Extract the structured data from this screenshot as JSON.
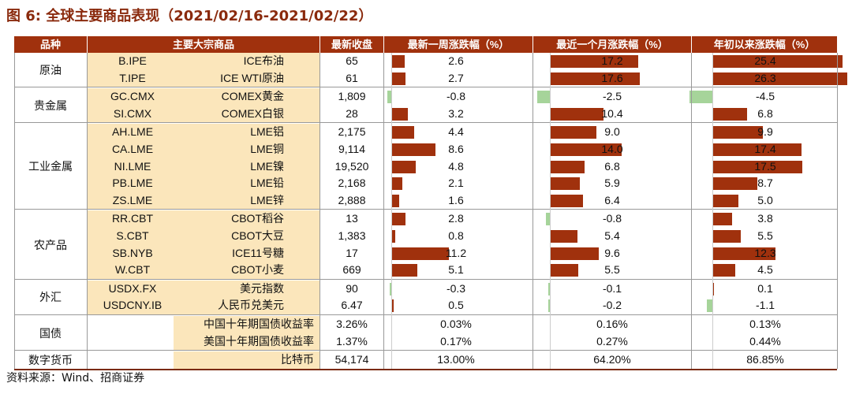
{
  "title": "图 6:  全球主要商品表现（2021/02/16-2021/02/22）",
  "headers": {
    "category": "品种",
    "commodity": "主要大宗商品",
    "close": "最新收盘",
    "week": "最新一周涨跌幅（%）",
    "month": "最近一个月涨跌幅（%）",
    "ytd": "年初以来涨跌幅（%）"
  },
  "colors": {
    "header_bg": "#a0310d",
    "up_bar": "#a0310d",
    "down_bar": "#a6d49a",
    "name_bg": "#fbe6bb"
  },
  "groups": [
    {
      "name": "原油",
      "rows": [
        {
          "code": "B.IPE",
          "name": "ICE布油",
          "close": "65",
          "week": 2.6,
          "week_text": "2.6",
          "month": 17.2,
          "month_text": "17.2",
          "ytd": 25.4,
          "ytd_text": "25.4"
        },
        {
          "code": "T.IPE",
          "name": "ICE WTI原油",
          "close": "61",
          "week": 2.7,
          "week_text": "2.7",
          "month": 17.6,
          "month_text": "17.6",
          "ytd": 26.3,
          "ytd_text": "26.3"
        }
      ]
    },
    {
      "name": "贵金属",
      "rows": [
        {
          "code": "GC.CMX",
          "name": "COMEX黄金",
          "close": "1,809",
          "week": -0.8,
          "week_text": "-0.8",
          "month": -2.5,
          "month_text": "-2.5",
          "ytd": -4.5,
          "ytd_text": "-4.5"
        },
        {
          "code": "SI.CMX",
          "name": "COMEX白银",
          "close": "28",
          "week": 3.2,
          "week_text": "3.2",
          "month": 10.4,
          "month_text": "10.4",
          "ytd": 6.8,
          "ytd_text": "6.8"
        }
      ]
    },
    {
      "name": "工业金属",
      "rows": [
        {
          "code": "AH.LME",
          "name": "LME铝",
          "close": "2,175",
          "week": 4.4,
          "week_text": "4.4",
          "month": 9.0,
          "month_text": "9.0",
          "ytd": 9.9,
          "ytd_text": "9.9"
        },
        {
          "code": "CA.LME",
          "name": "LME铜",
          "close": "9,114",
          "week": 8.6,
          "week_text": "8.6",
          "month": 14.0,
          "month_text": "14.0",
          "ytd": 17.4,
          "ytd_text": "17.4"
        },
        {
          "code": "NI.LME",
          "name": "LME镍",
          "close": "19,520",
          "week": 4.8,
          "week_text": "4.8",
          "month": 6.8,
          "month_text": "6.8",
          "ytd": 17.5,
          "ytd_text": "17.5"
        },
        {
          "code": "PB.LME",
          "name": "LME铅",
          "close": "2,168",
          "week": 2.1,
          "week_text": "2.1",
          "month": 5.9,
          "month_text": "5.9",
          "ytd": 8.7,
          "ytd_text": "8.7"
        },
        {
          "code": "ZS.LME",
          "name": "LME锌",
          "close": "2,888",
          "week": 1.6,
          "week_text": "1.6",
          "month": 6.4,
          "month_text": "6.4",
          "ytd": 5.0,
          "ytd_text": "5.0"
        }
      ]
    },
    {
      "name": "农产品",
      "rows": [
        {
          "code": "RR.CBT",
          "name": "CBOT稻谷",
          "close": "13",
          "week": 2.8,
          "week_text": "2.8",
          "month": -0.8,
          "month_text": "-0.8",
          "ytd": 3.8,
          "ytd_text": "3.8"
        },
        {
          "code": "S.CBT",
          "name": "CBOT大豆",
          "close": "1,383",
          "week": 0.8,
          "week_text": "0.8",
          "month": 5.4,
          "month_text": "5.4",
          "ytd": 5.5,
          "ytd_text": "5.5"
        },
        {
          "code": "SB.NYB",
          "name": "ICE11号糖",
          "close": "17",
          "week": 11.2,
          "week_text": "11.2",
          "month": 9.6,
          "month_text": "9.6",
          "ytd": 12.3,
          "ytd_text": "12.3"
        },
        {
          "code": "W.CBT",
          "name": "CBOT小麦",
          "close": "669",
          "week": 5.1,
          "week_text": "5.1",
          "month": 5.5,
          "month_text": "5.5",
          "ytd": 4.5,
          "ytd_text": "4.5"
        }
      ]
    },
    {
      "name": "外汇",
      "rows": [
        {
          "code": "USDX.FX",
          "name": "美元指数",
          "close": "90",
          "week": -0.3,
          "week_text": "-0.3",
          "month": -0.1,
          "month_text": "-0.1",
          "ytd": 0.1,
          "ytd_text": "0.1"
        },
        {
          "code": "USDCNY.IB",
          "name": "人民币兑美元",
          "close": "6.47",
          "week": 0.5,
          "week_text": "0.5",
          "month": -0.2,
          "month_text": "-0.2",
          "ytd": -1.1,
          "ytd_text": "-1.1"
        }
      ]
    },
    {
      "name": "国债",
      "rows": [
        {
          "code": "",
          "name": "中国十年期国债收益率",
          "close": "3.26%",
          "week_text": "0.03%",
          "month_text": "0.16%",
          "ytd_text": "0.13%"
        },
        {
          "code": "",
          "name": "美国十年期国债收益率",
          "close": "1.37%",
          "week_text": "0.17%",
          "month_text": "0.27%",
          "ytd_text": "0.44%"
        }
      ]
    },
    {
      "name": "数字货币",
      "rows": [
        {
          "code": "",
          "name": "比特币",
          "close": "54,174",
          "week_text": "13.00%",
          "month_text": "64.20%",
          "ytd_text": "86.85%"
        }
      ]
    }
  ],
  "source": "资料来源：Wind、招商证券"
}
